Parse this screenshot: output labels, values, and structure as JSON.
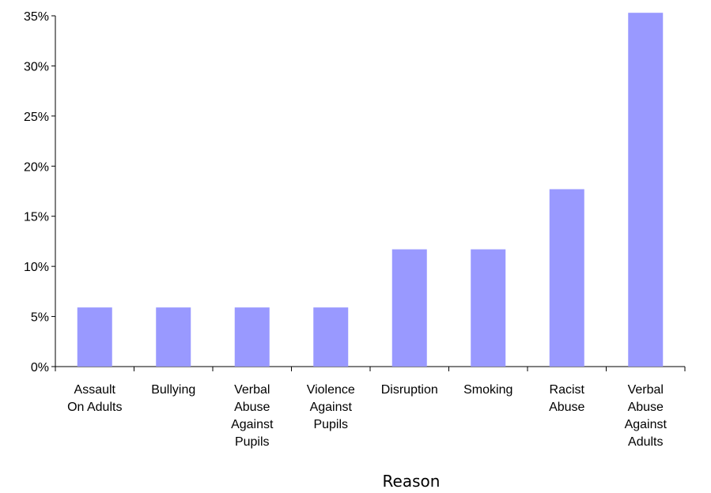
{
  "chart_data": {
    "type": "bar",
    "title": "",
    "xlabel": "Reason",
    "ylabel": "",
    "categories": [
      [
        "Assault",
        "On Adults"
      ],
      [
        "Bullying"
      ],
      [
        "Verbal",
        "Abuse",
        "Against",
        "Pupils"
      ],
      [
        "Violence",
        "Against",
        "Pupils"
      ],
      [
        "Disruption"
      ],
      [
        "Smoking"
      ],
      [
        "Racist",
        "Abuse"
      ],
      [
        "Verbal",
        "Abuse",
        "Against",
        "Adults"
      ]
    ],
    "values": [
      5.9,
      5.9,
      5.9,
      5.9,
      11.7,
      11.7,
      17.7,
      35.3
    ],
    "ylim": [
      0,
      35
    ],
    "yticks": [
      "0%",
      "5%",
      "10%",
      "15%",
      "20%",
      "25%",
      "30%",
      "35%"
    ],
    "bar_color": "#9999ff",
    "grid": false,
    "legend": "none"
  }
}
